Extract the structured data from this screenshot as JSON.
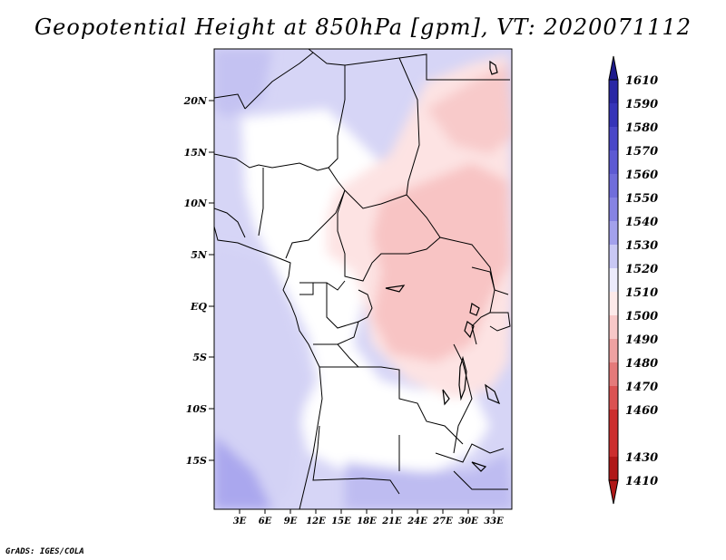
{
  "title": "Geopotential Height at 850hPa [gpm], VT: 2020071112",
  "credit": "GrADS: IGES/COLA",
  "map": {
    "lat_labels": [
      "20N",
      "15N",
      "10N",
      "5N",
      "EQ",
      "5S",
      "10S",
      "15S"
    ],
    "lon_labels": [
      "3E",
      "6E",
      "9E",
      "12E",
      "15E",
      "18E",
      "21E",
      "24E",
      "27E",
      "30E",
      "33E"
    ]
  },
  "colorbar": {
    "levels": [
      "1610",
      "1590",
      "1580",
      "1570",
      "1560",
      "1550",
      "1540",
      "1530",
      "1520",
      "1510",
      "1500",
      "1490",
      "1480",
      "1470",
      "1460",
      "1430",
      "1410"
    ],
    "colors": [
      "#1d1a8c",
      "#2a27a5",
      "#3634b8",
      "#4a47c8",
      "#5d5ad3",
      "#706ddb",
      "#8683e3",
      "#a3a1ec",
      "#c9c8f4",
      "#ecebfb",
      "#fdeaea",
      "#f8c8c8",
      "#eea2a2",
      "#e57a7a",
      "#db5252",
      "#cc2e2e",
      "#b01818"
    ]
  }
}
